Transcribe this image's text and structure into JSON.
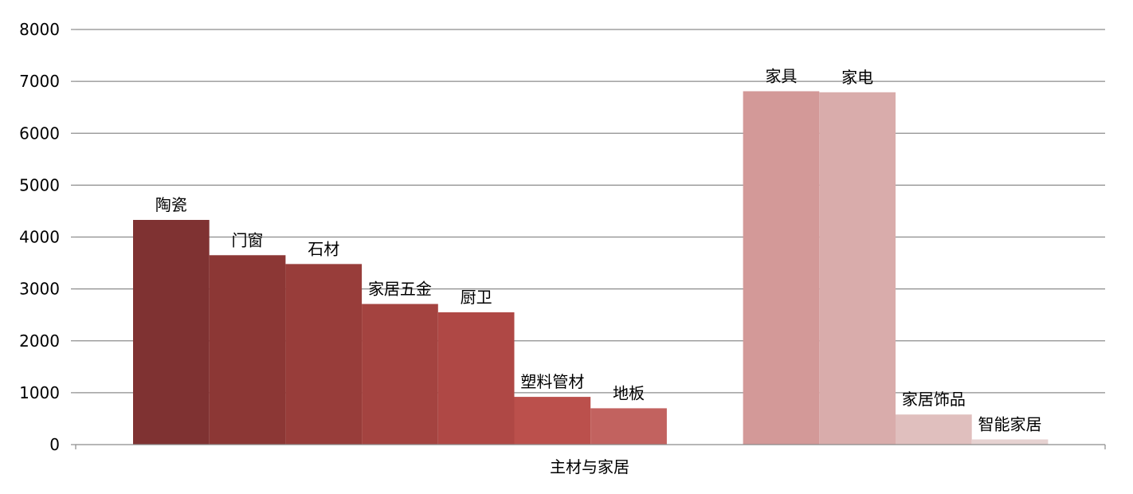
{
  "chart_data": {
    "type": "bar",
    "title": "",
    "xlabel": "",
    "ylabel": "",
    "ylim": [
      0,
      8000
    ],
    "yticks": [
      0,
      1000,
      2000,
      3000,
      4000,
      5000,
      6000,
      7000,
      8000
    ],
    "grid": true,
    "legend": "none",
    "category": "主材与家居",
    "bars": [
      {
        "label": "陶瓷",
        "value": 4330,
        "color": "#7f3232"
      },
      {
        "label": "门窗",
        "value": 3650,
        "color": "#8c3735"
      },
      {
        "label": "石材",
        "value": 3480,
        "color": "#983d3a"
      },
      {
        "label": "家居五金",
        "value": 2710,
        "color": "#a44340"
      },
      {
        "label": "厨卫",
        "value": 2550,
        "color": "#af4845"
      },
      {
        "label": "塑料管材",
        "value": 920,
        "color": "#bb504c"
      },
      {
        "label": "地板",
        "value": 700,
        "color": "#c2625f"
      },
      {
        "label": "",
        "value": 0,
        "color": "#ffffff"
      },
      {
        "label": "家具",
        "value": 6810,
        "color": "#d39998"
      },
      {
        "label": "家电",
        "value": 6790,
        "color": "#d9acab"
      },
      {
        "label": "家居饰品",
        "value": 580,
        "color": "#e0bfbe"
      },
      {
        "label": "智能家居",
        "value": 100,
        "color": "#e6d2d1"
      }
    ]
  }
}
